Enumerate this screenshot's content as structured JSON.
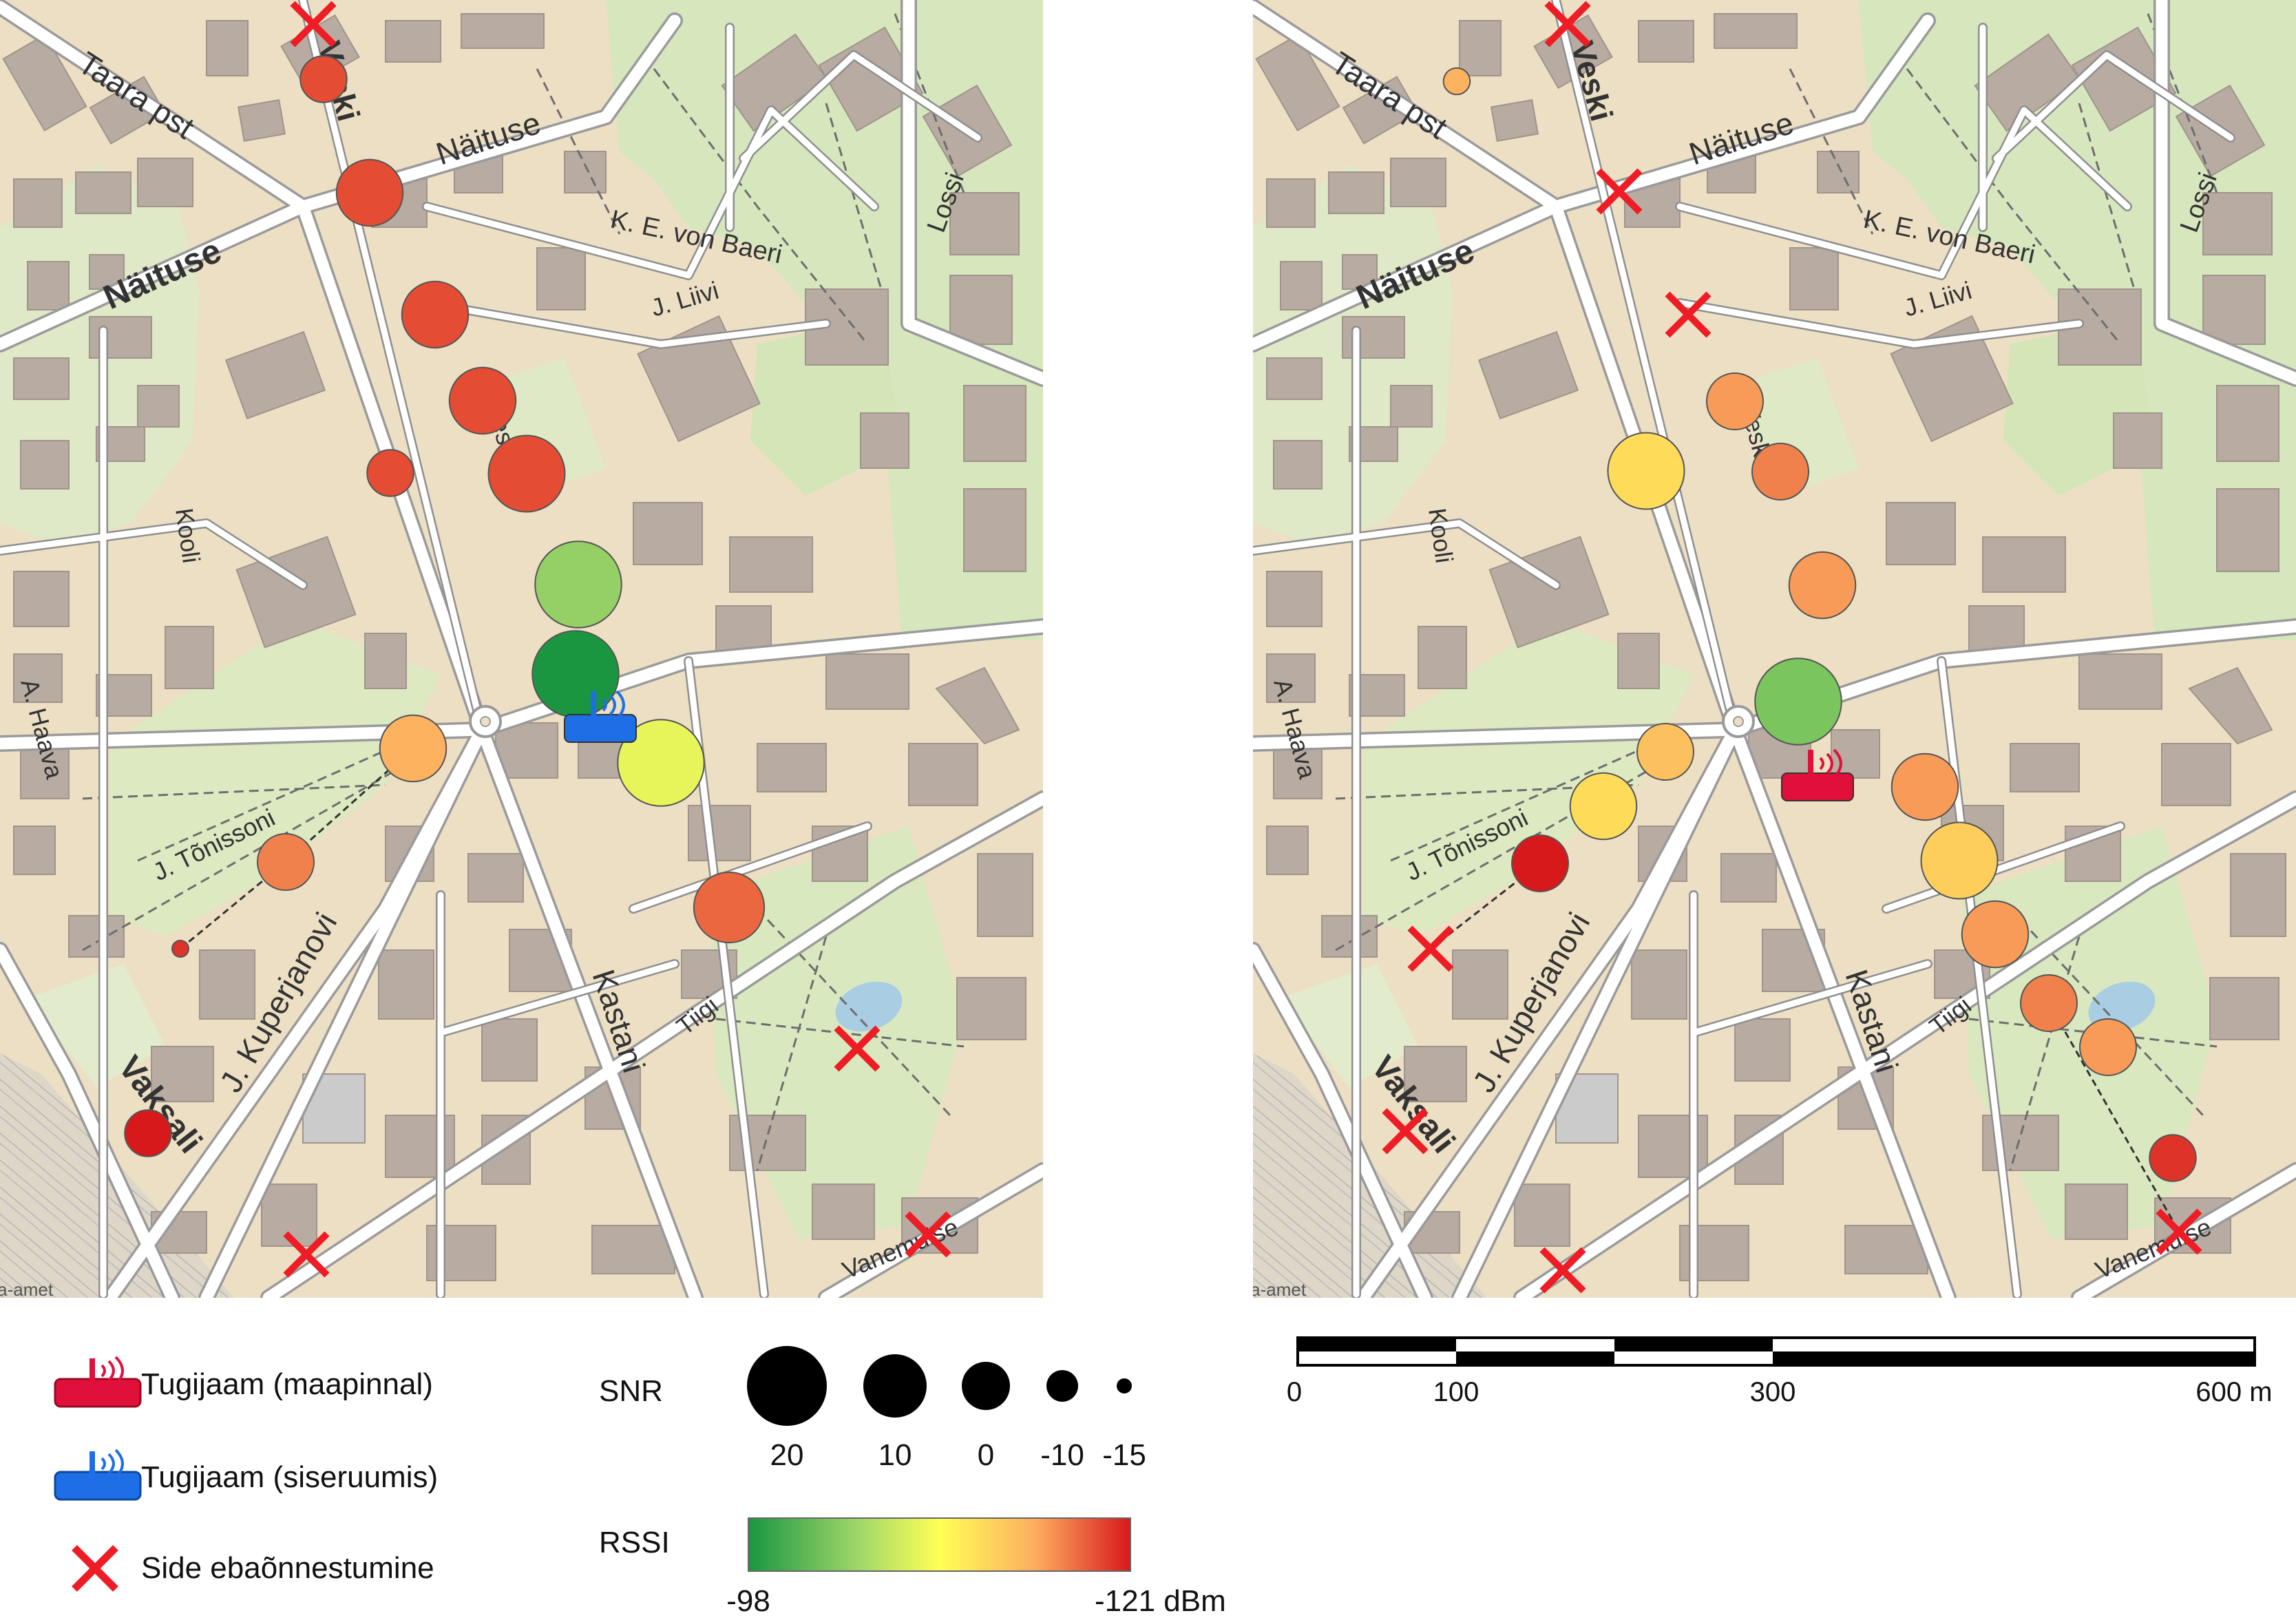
{
  "streets": {
    "taara": "Taara pst",
    "naituse_small": "Näituse",
    "naituse_bold": "Näituse",
    "ke_baer": "K. E. von Baeri",
    "lossi": "Lossi",
    "j_liivi": "J. Liivi",
    "kooli": "Kooli",
    "a_haava": "A. Haava",
    "j_tonissoni": "J. Tõnissoni",
    "j_kuperjanovi": "J. Kuperjanovi",
    "vaksali": "Vaksali",
    "kastani": "Kastani",
    "tiigi": "Tiigi",
    "vanemuise": "Vanemuise",
    "veski_top": "Veski",
    "veski_mid": "Veski",
    "attribution": "Maa-amet"
  },
  "legend": {
    "ground_station": "Tugijaam (maapinnal)",
    "indoor_station": "Tugijaam (siseruumis)",
    "failure": "Side ebaõnnestumine",
    "snr_title": "SNR",
    "snr_values": [
      "20",
      "10",
      "0",
      "-10",
      "-15"
    ],
    "rssi_title": "RSSI",
    "rssi_min": "-98",
    "rssi_max": "-121 dBm"
  },
  "scalebar": {
    "labels": [
      "0",
      "100",
      "300",
      "600 m"
    ]
  },
  "colors": {
    "rssi_gradient": [
      "#1a9641",
      "#a6d96a",
      "#ffff55",
      "#fdae61",
      "#d7191c"
    ],
    "failure_x": "#ee1c25",
    "ground_station": "#e0103a",
    "indoor_station": "#1e6fe6"
  },
  "measurements": {
    "left_map": [
      {
        "snr": 0,
        "rssi": -119
      },
      {
        "snr": 10,
        "rssi": -119
      },
      {
        "snr": 10,
        "rssi": -119
      },
      {
        "snr": 10,
        "rssi": -119
      },
      {
        "snr": 0,
        "rssi": -119
      },
      {
        "snr": 15,
        "rssi": -119
      },
      {
        "snr": 20,
        "rssi": -103
      },
      {
        "snr": 20,
        "rssi": -98
      },
      {
        "snr": 20,
        "rssi": -108
      },
      {
        "snr": 12,
        "rssi": -118
      },
      {
        "snr": 10,
        "rssi": -115
      },
      {
        "snr": 5,
        "rssi": -117
      },
      {
        "snr": -15,
        "rssi": -120
      },
      {
        "snr": 0,
        "rssi": -121
      }
    ],
    "right_map": [
      {
        "snr": -10,
        "rssi": -115
      },
      {
        "snr": 5,
        "rssi": -116
      },
      {
        "snr": 15,
        "rssi": -112
      },
      {
        "snr": 5,
        "rssi": -117
      },
      {
        "snr": 10,
        "rssi": -116
      },
      {
        "snr": 20,
        "rssi": -102
      },
      {
        "snr": 5,
        "rssi": -114
      },
      {
        "snr": 10,
        "rssi": -112
      },
      {
        "snr": 5,
        "rssi": -121
      },
      {
        "snr": 10,
        "rssi": -116
      },
      {
        "snr": 15,
        "rssi": -113
      },
      {
        "snr": 10,
        "rssi": -116
      },
      {
        "snr": 5,
        "rssi": -117
      },
      {
        "snr": 5,
        "rssi": -116
      },
      {
        "snr": 0,
        "rssi": -120
      }
    ]
  }
}
